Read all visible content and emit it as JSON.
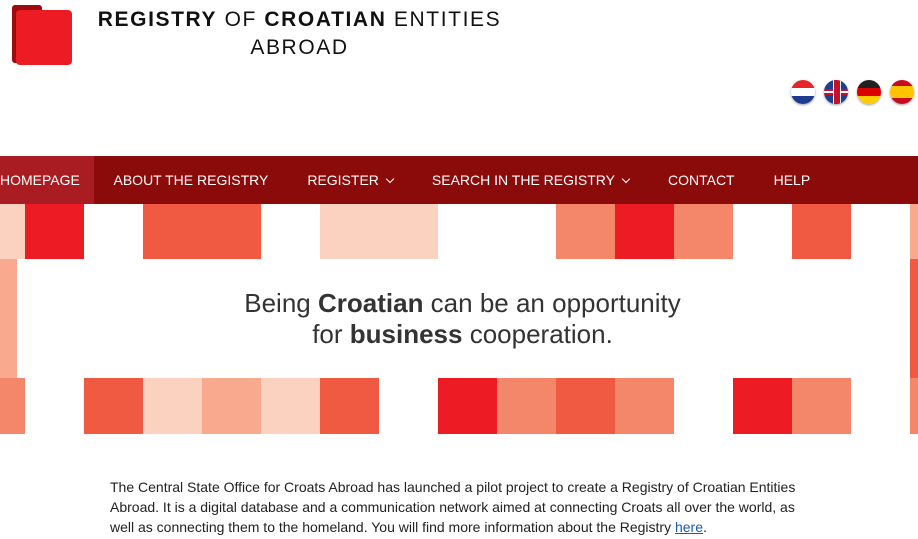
{
  "header": {
    "title_bold1": "REGISTRY",
    "title_1": " OF ",
    "title_bold2": "CROATIAN",
    "title_2": " ENTITIES",
    "title_line2": "ABROAD"
  },
  "languages": [
    {
      "name": "Croatian",
      "icon": "croatian-flag-icon"
    },
    {
      "name": "English",
      "icon": "uk-flag-icon"
    },
    {
      "name": "German",
      "icon": "german-flag-icon"
    },
    {
      "name": "Spanish",
      "icon": "spanish-flag-icon"
    }
  ],
  "nav": {
    "items": [
      {
        "label": "HOMEPAGE",
        "active": true
      },
      {
        "label": "ABOUT THE REGISTRY"
      },
      {
        "label": "REGISTER",
        "dropdown": true
      },
      {
        "label": "SEARCH IN THE REGISTRY",
        "dropdown": true
      },
      {
        "label": "CONTACT"
      },
      {
        "label": "HELP"
      }
    ]
  },
  "banner": {
    "t1": "Being ",
    "b1": "Croatian",
    "t2": " can be an opportunity",
    "t3": "for ",
    "b2": "business",
    "t4": " cooperation."
  },
  "intro": {
    "text": "The Central State Office for Croats Abroad has launched a pilot project to create a Registry of Croatian Entities Abroad. It is a digital database and a communication network aimed at connecting Croats all over the world, as well as connecting them to the homeland. You will find more information about the Registry ",
    "link": "here",
    "end": "."
  },
  "colors": {
    "nav": "#8b0a0a",
    "nav_active": "#a91d22",
    "red": "#ed1c24",
    "tile_dark": "#f15a42",
    "tile_mid": "#f4866a",
    "tile_light": "#f9a98e",
    "tile_pale": "#fbd1c0"
  }
}
